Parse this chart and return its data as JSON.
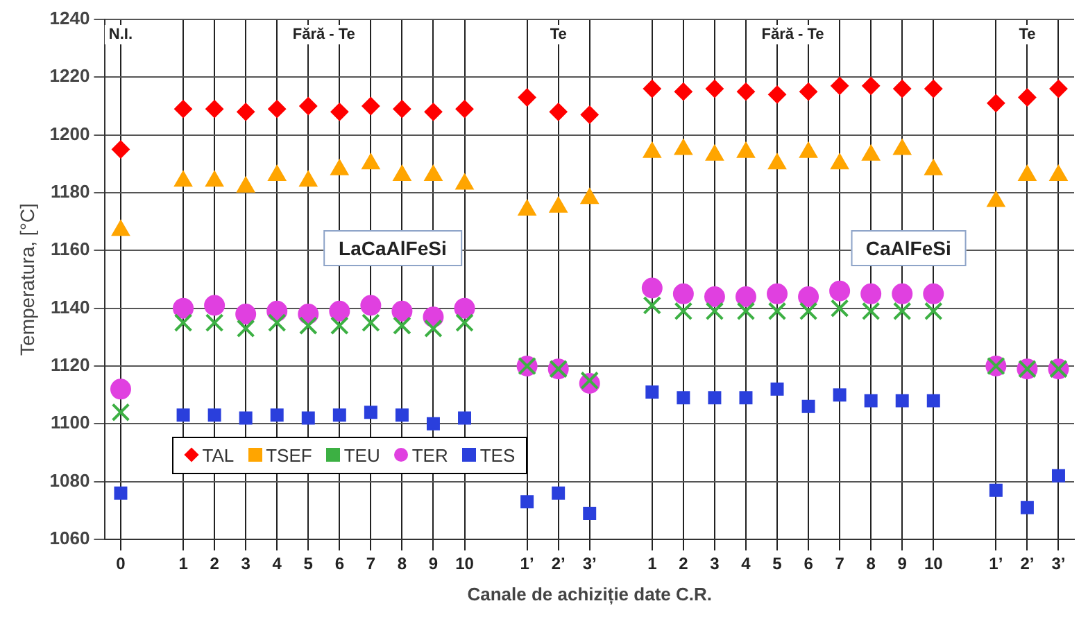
{
  "chart_data": {
    "type": "scatter",
    "xlabel": "Canale de achiziție date C.R.",
    "ylabel": "Temperatura, [°C]",
    "categories": [
      "0",
      null,
      "1",
      "2",
      "3",
      "4",
      "5",
      "6",
      "7",
      "8",
      "9",
      "10",
      null,
      "1’",
      "2’",
      "3’",
      null,
      "1",
      "2",
      "3",
      "4",
      "5",
      "6",
      "7",
      "8",
      "9",
      "10",
      null,
      "1’",
      "2’",
      "3’"
    ],
    "series": [
      {
        "name": "TAL",
        "color": "#ff0000",
        "marker": "diamond",
        "values": [
          1195,
          null,
          1209,
          1209,
          1208,
          1209,
          1210,
          1208,
          1210,
          1209,
          1208,
          1209,
          null,
          1213,
          1208,
          1207,
          null,
          1216,
          1215,
          1216,
          1215,
          1214,
          1215,
          1217,
          1217,
          1216,
          1216,
          null,
          1211,
          1213,
          1216
        ]
      },
      {
        "name": "TSEF",
        "color": "#ffa500",
        "marker": "triangle",
        "values": [
          1167,
          null,
          1184,
          1184,
          1182,
          1186,
          1184,
          1188,
          1190,
          1186,
          1186,
          1183,
          null,
          1174,
          1175,
          1178,
          null,
          1194,
          1195,
          1193,
          1194,
          1190,
          1194,
          1190,
          1193,
          1195,
          1188,
          null,
          1177,
          1186,
          1186
        ]
      },
      {
        "name": "TEU",
        "color": "#3cb043",
        "marker": "cross",
        "values": [
          1104,
          null,
          1135,
          1135,
          1133,
          1135,
          1134,
          1134,
          1135,
          1134,
          1133,
          1135,
          null,
          1120,
          1119,
          1115,
          null,
          1141,
          1139,
          1139,
          1139,
          1139,
          1139,
          1140,
          1139,
          1139,
          1139,
          null,
          1120,
          1119,
          1119
        ]
      },
      {
        "name": "TER",
        "color": "#e040e0",
        "marker": "circle",
        "values": [
          1112,
          null,
          1140,
          1141,
          1138,
          1139,
          1138,
          1139,
          1141,
          1139,
          1137,
          1140,
          null,
          1120,
          1119,
          1114,
          null,
          1147,
          1145,
          1144,
          1144,
          1145,
          1144,
          1146,
          1145,
          1145,
          1145,
          null,
          1120,
          1119,
          1119
        ]
      },
      {
        "name": "TES",
        "color": "#2a3fdc",
        "marker": "square",
        "values": [
          1076,
          null,
          1103,
          1103,
          1102,
          1103,
          1102,
          1103,
          1104,
          1103,
          1100,
          1102,
          null,
          1073,
          1076,
          1069,
          null,
          1111,
          1109,
          1109,
          1109,
          1112,
          1106,
          1110,
          1108,
          1108,
          1108,
          null,
          1077,
          1071,
          1082
        ]
      }
    ],
    "ylim": [
      1060,
      1240
    ],
    "yticks": [
      1060,
      1080,
      1100,
      1120,
      1140,
      1160,
      1180,
      1200,
      1220,
      1240
    ],
    "grid": true,
    "legend": "bottom left",
    "annotations": [
      "N.I.",
      "Fără - Te",
      "Te",
      "Fără - Te",
      "Te",
      "LaCaAlFeSi",
      "CaAlFeSi"
    ]
  }
}
